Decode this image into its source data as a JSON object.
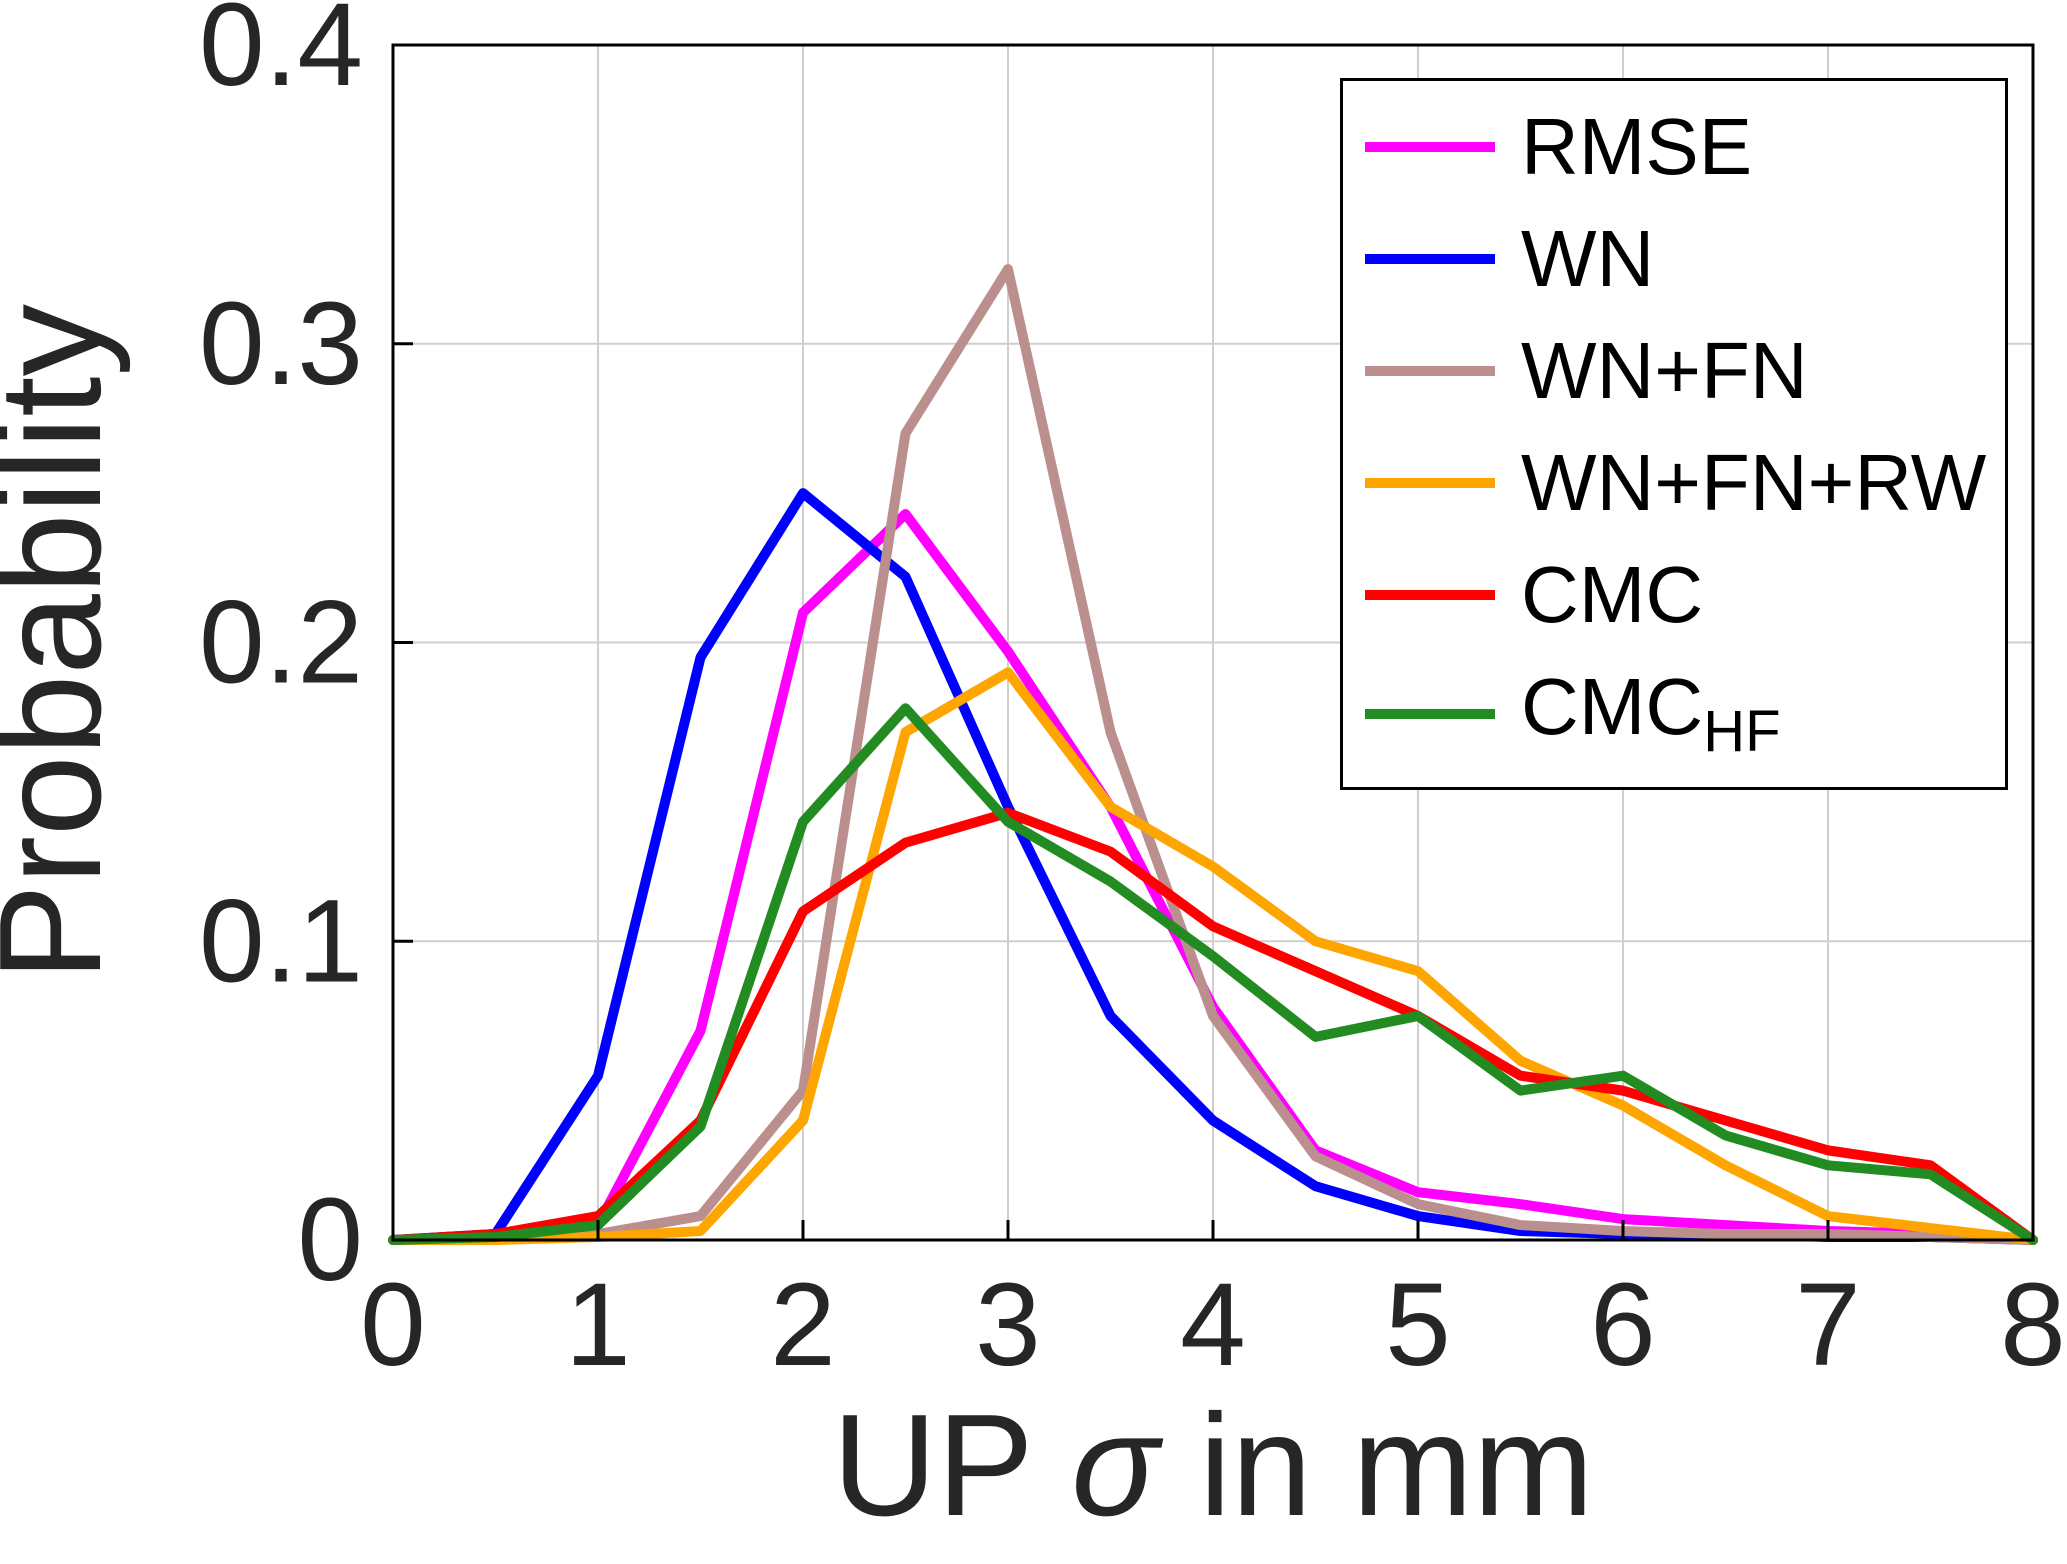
{
  "figure": {
    "background": "#FFFFFF"
  },
  "chart_data": {
    "type": "line",
    "title": "",
    "xlabel_text": "UP σ in mm",
    "xlabel": {
      "pre": "UP ",
      "sigma": "σ",
      "post": " in mm"
    },
    "ylabel": "Probability",
    "xlim": [
      0,
      8
    ],
    "ylim": [
      0,
      0.4
    ],
    "xticks": [
      0,
      1,
      2,
      3,
      4,
      5,
      6,
      7,
      8
    ],
    "yticks": [
      0,
      0.1,
      0.2,
      0.3,
      0.4
    ],
    "grid": true,
    "legend_position": "top-right",
    "axis_color": "#000000",
    "grid_color": "#CFCFCF",
    "tick_label_color": "#262626",
    "x": [
      0,
      0.5,
      1,
      1.5,
      2,
      2.5,
      3,
      3.5,
      4,
      4.5,
      5,
      5.5,
      6,
      6.5,
      7,
      7.5,
      8
    ],
    "series": [
      {
        "id": "rmse",
        "label": "RMSE",
        "color": "#FF00FF",
        "values": [
          0,
          0,
          0.005,
          0.07,
          0.21,
          0.243,
          0.197,
          0.145,
          0.078,
          0.03,
          0.016,
          0.012,
          0.007,
          0.005,
          0.003,
          0.002,
          0
        ]
      },
      {
        "id": "wn",
        "label": "WN",
        "color": "#0000FF",
        "values": [
          0,
          0.002,
          0.055,
          0.195,
          0.25,
          0.222,
          0.145,
          0.075,
          0.04,
          0.018,
          0.008,
          0.003,
          0.002,
          0.002,
          0.001,
          0.001,
          0
        ]
      },
      {
        "id": "wn-fn",
        "label": "WN+FN",
        "color": "#BC8F8F",
        "values": [
          0,
          0,
          0.002,
          0.008,
          0.05,
          0.27,
          0.325,
          0.17,
          0.075,
          0.028,
          0.012,
          0.005,
          0.003,
          0.002,
          0.002,
          0.001,
          0
        ]
      },
      {
        "id": "wn-fn-rw",
        "label": "WN+FN+RW",
        "color": "#FFA500",
        "values": [
          0,
          0,
          0.001,
          0.003,
          0.04,
          0.17,
          0.19,
          0.145,
          0.125,
          0.1,
          0.09,
          0.06,
          0.045,
          0.025,
          0.008,
          0.004,
          0
        ]
      },
      {
        "id": "cmc",
        "label": "CMC",
        "color": "#FF0000",
        "values": [
          0,
          0.002,
          0.008,
          0.04,
          0.11,
          0.133,
          0.143,
          0.13,
          0.105,
          0.09,
          0.075,
          0.055,
          0.05,
          0.04,
          0.03,
          0.025,
          0
        ]
      },
      {
        "id": "cmc-hf",
        "label": "CMC",
        "label_subscript": "HF",
        "color": "#228B22",
        "values": [
          0,
          0.001,
          0.005,
          0.038,
          0.14,
          0.178,
          0.14,
          0.12,
          0.095,
          0.068,
          0.075,
          0.05,
          0.055,
          0.035,
          0.025,
          0.022,
          0
        ]
      }
    ]
  }
}
